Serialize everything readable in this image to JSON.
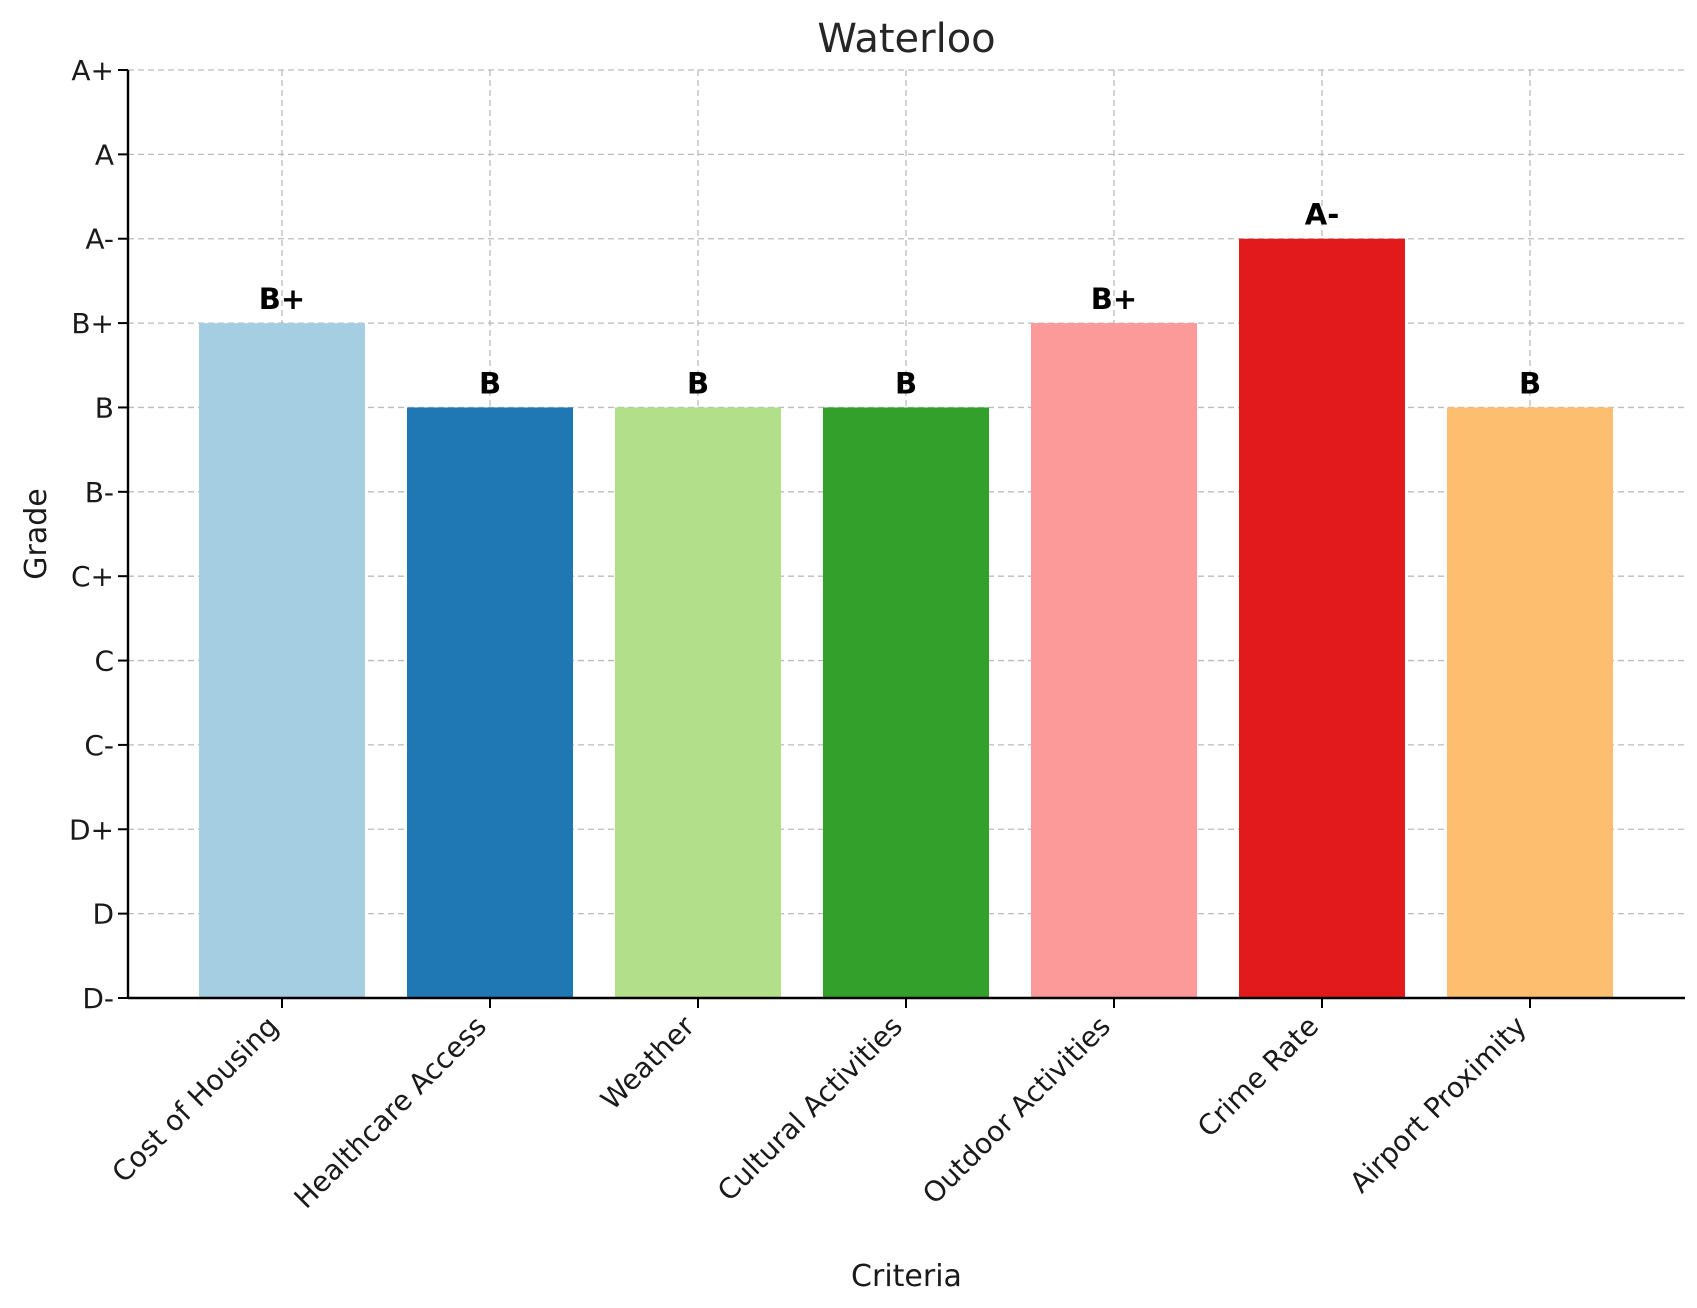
{
  "chart_data": {
    "type": "bar",
    "title": "Waterloo",
    "xlabel": "Criteria",
    "ylabel": "Grade",
    "categories": [
      "Cost of Housing",
      "Healthcare Access",
      "Weather",
      "Cultural Activities",
      "Outdoor Activities",
      "Crime Rate",
      "Airport Proximity"
    ],
    "values": [
      8,
      7,
      7,
      7,
      8,
      9,
      7
    ],
    "value_labels": [
      "B+",
      "B",
      "B",
      "B",
      "B+",
      "A-",
      "B"
    ],
    "colors": [
      "#a6cee3",
      "#1f78b4",
      "#b2df8a",
      "#33a02c",
      "#fb9a99",
      "#e31a1c",
      "#fdbf6f"
    ],
    "y_tick_labels": [
      "D-",
      "D",
      "D+",
      "C-",
      "C",
      "C+",
      "B-",
      "B",
      "B+",
      "A-",
      "A",
      "A+"
    ],
    "ylim": [
      0,
      11
    ],
    "grid": true,
    "legend": "none"
  }
}
